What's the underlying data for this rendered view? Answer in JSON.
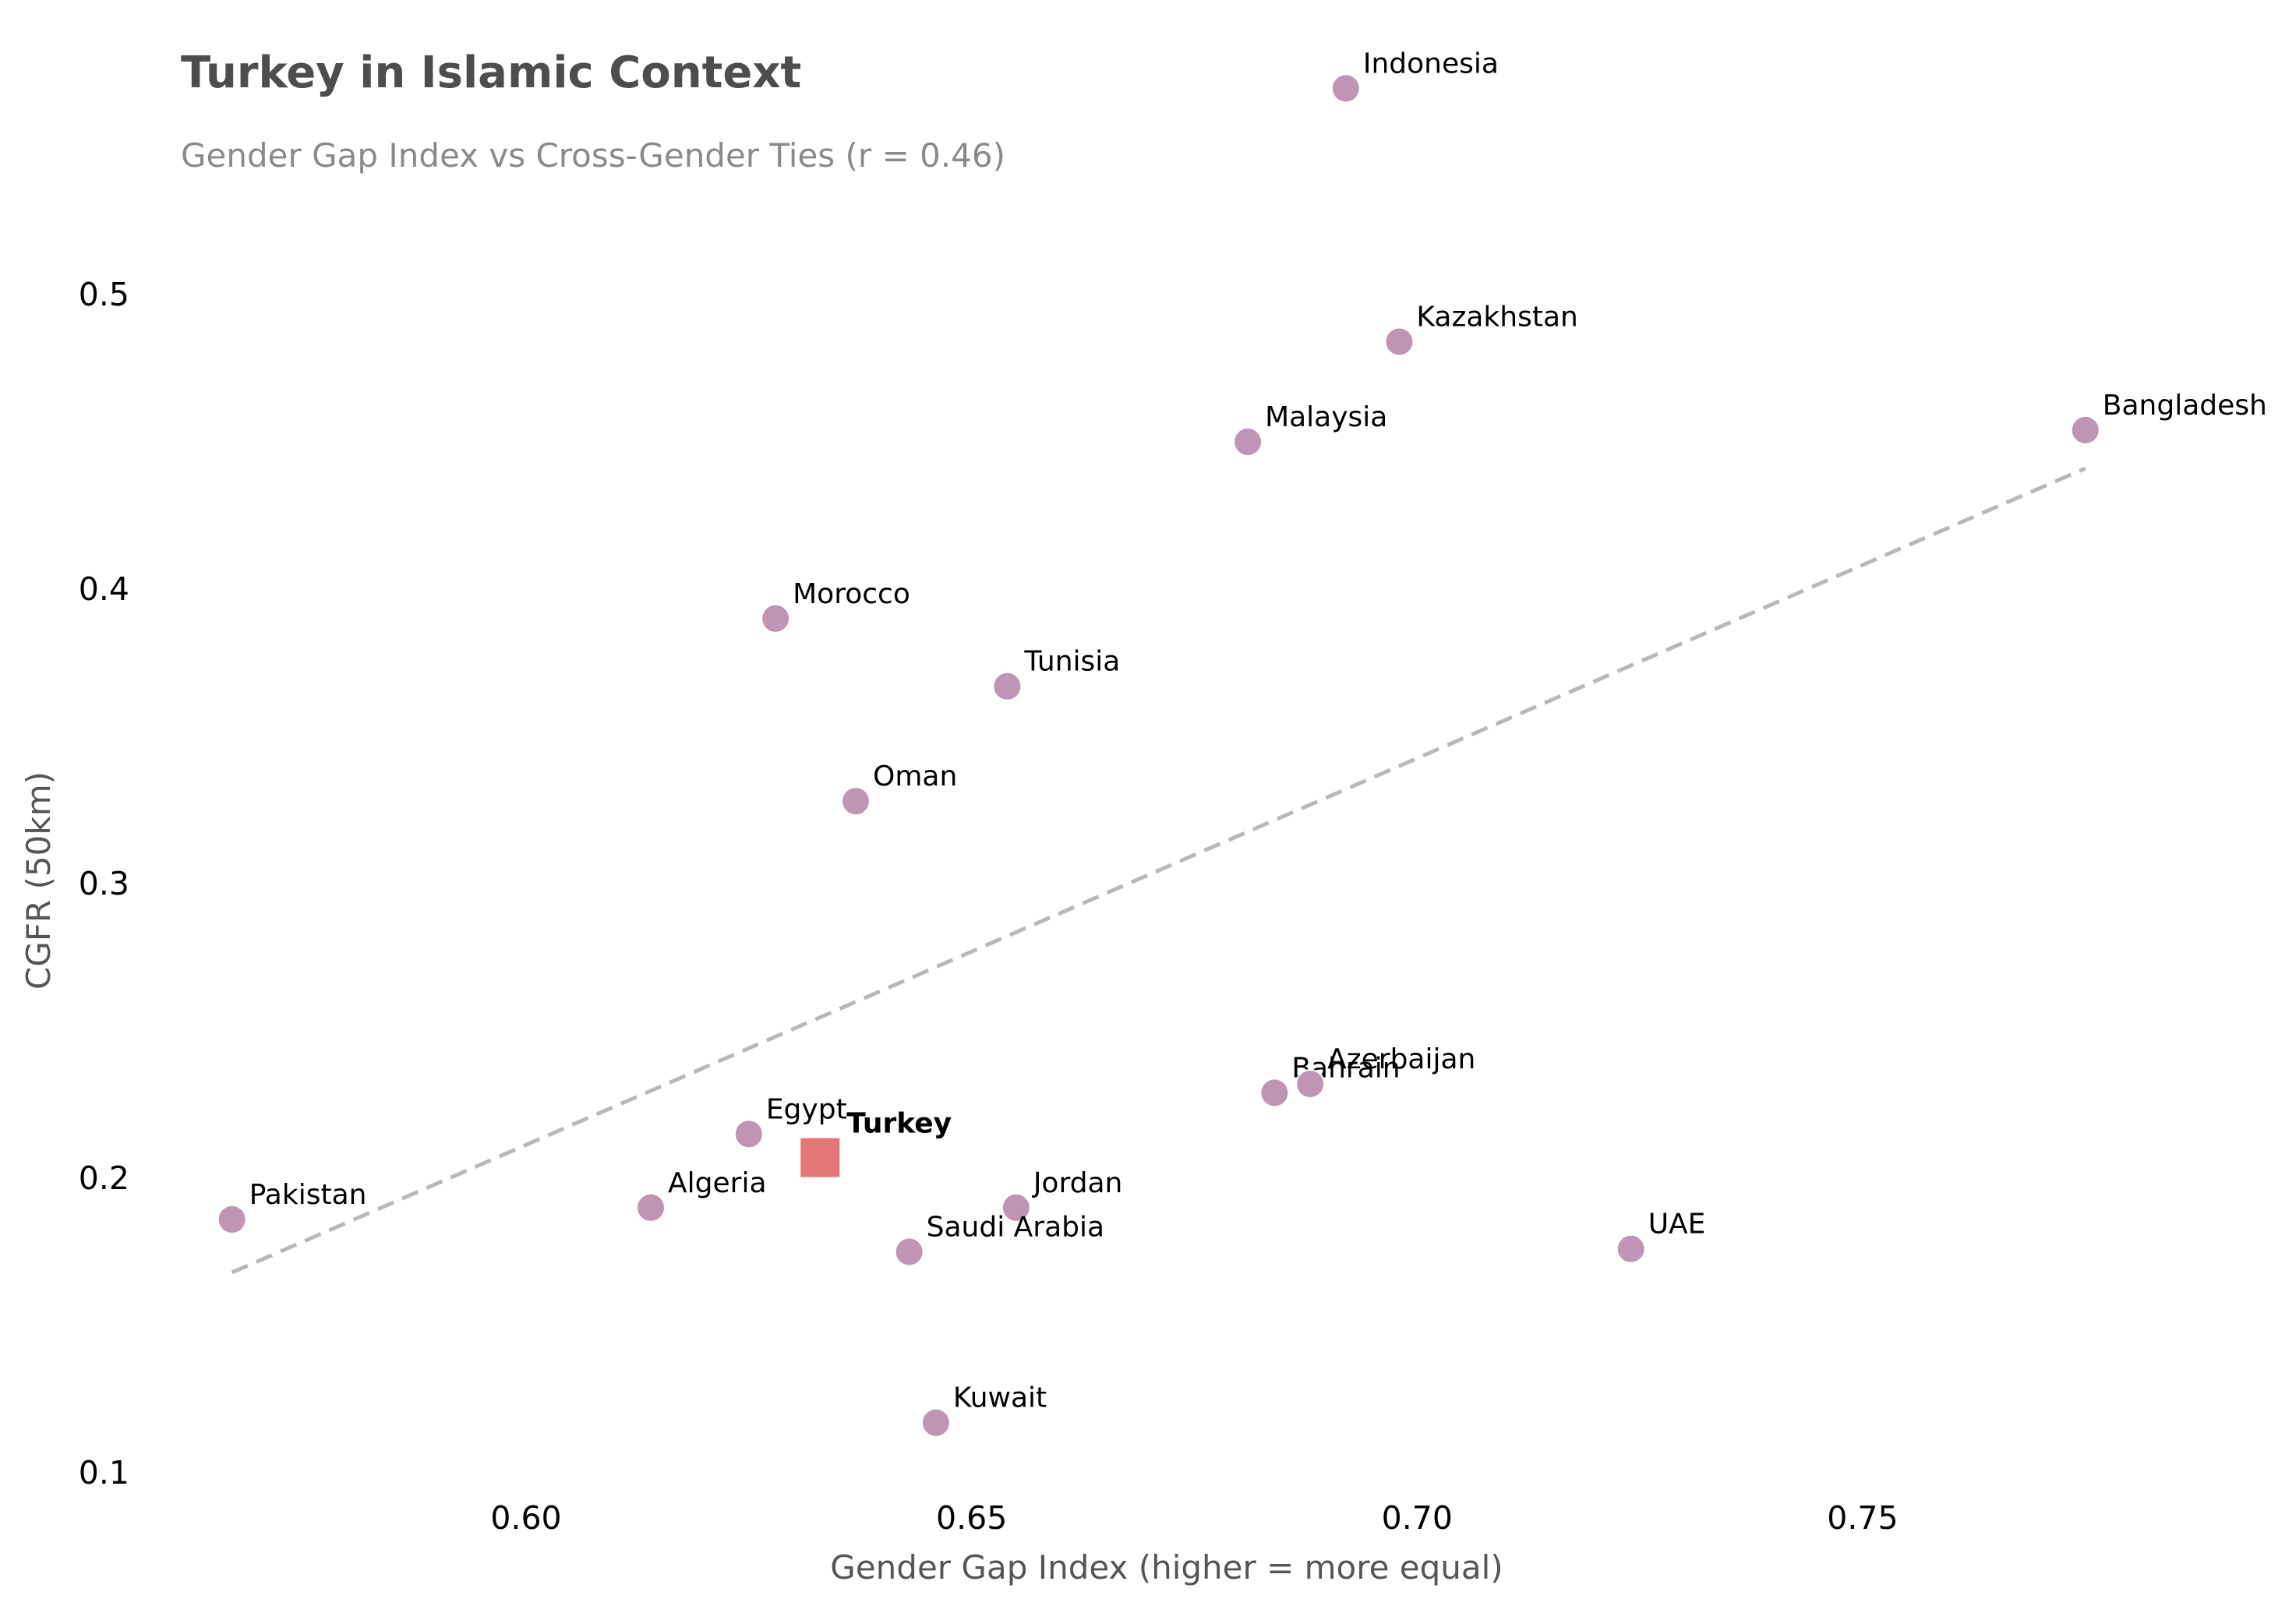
{
  "header": {
    "title": "Turkey in Islamic Context",
    "subtitle": "Gender Gap Index vs Cross-Gender Ties (r = 0.46)"
  },
  "axes": {
    "xlabel": "Gender Gap Index (higher = more equal)",
    "ylabel": "CGFR (50km)",
    "xticks": [
      "0.60",
      "0.65",
      "0.70",
      "0.75"
    ],
    "yticks": [
      "0.5",
      "0.4",
      "0.3",
      "0.2",
      "0.1"
    ]
  },
  "colors": {
    "point": "#c094b5",
    "highlight": "#e57676",
    "trend": "#b8b8b8",
    "title": "#4d4d4d",
    "subtitle": "#8a8a8a"
  },
  "chart_data": {
    "type": "scatter",
    "title": "Turkey in Islamic Context",
    "subtitle": "Gender Gap Index vs Cross-Gender Ties (r = 0.46)",
    "xlabel": "Gender Gap Index (higher = more equal)",
    "ylabel": "CGFR (50km)",
    "xlim": [
      0.556,
      0.795
    ],
    "ylim": [
      0.095,
      0.58
    ],
    "xticks": [
      0.6,
      0.65,
      0.7,
      0.75
    ],
    "yticks": [
      0.1,
      0.2,
      0.3,
      0.4,
      0.5
    ],
    "grid": false,
    "legend": null,
    "correlation_r": 0.46,
    "trend_line": {
      "style": "dashed",
      "x": [
        0.567,
        0.775
      ],
      "y": [
        0.168,
        0.441
      ]
    },
    "points": [
      {
        "label": "Indonesia",
        "x": 0.692,
        "y": 0.57,
        "highlight": false
      },
      {
        "label": "Kazakhstan",
        "x": 0.698,
        "y": 0.484,
        "highlight": false
      },
      {
        "label": "Malaysia",
        "x": 0.681,
        "y": 0.45,
        "highlight": false
      },
      {
        "label": "Bangladesh",
        "x": 0.775,
        "y": 0.454,
        "highlight": false
      },
      {
        "label": "Morocco",
        "x": 0.628,
        "y": 0.39,
        "highlight": false
      },
      {
        "label": "Tunisia",
        "x": 0.654,
        "y": 0.367,
        "highlight": false
      },
      {
        "label": "Oman",
        "x": 0.637,
        "y": 0.328,
        "highlight": false
      },
      {
        "label": "Bahrain",
        "x": 0.684,
        "y": 0.229,
        "highlight": false
      },
      {
        "label": "Azerbaijan",
        "x": 0.688,
        "y": 0.232,
        "highlight": false
      },
      {
        "label": "Egypt",
        "x": 0.625,
        "y": 0.215,
        "highlight": false
      },
      {
        "label": "Turkey",
        "x": 0.633,
        "y": 0.207,
        "highlight": true
      },
      {
        "label": "Algeria",
        "x": 0.614,
        "y": 0.19,
        "highlight": false
      },
      {
        "label": "Jordan",
        "x": 0.655,
        "y": 0.19,
        "highlight": false
      },
      {
        "label": "Saudi Arabia",
        "x": 0.643,
        "y": 0.175,
        "highlight": false
      },
      {
        "label": "Pakistan",
        "x": 0.567,
        "y": 0.186,
        "highlight": false
      },
      {
        "label": "UAE",
        "x": 0.724,
        "y": 0.176,
        "highlight": false
      },
      {
        "label": "Kuwait",
        "x": 0.646,
        "y": 0.117,
        "highlight": false
      }
    ]
  }
}
